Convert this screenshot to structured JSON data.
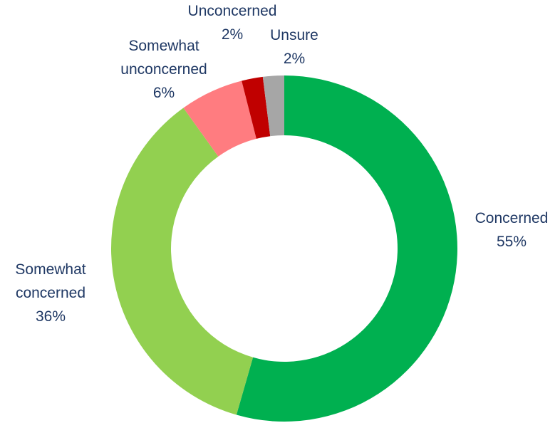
{
  "chart_data": {
    "type": "pie",
    "donut": true,
    "title": "",
    "legend": "none",
    "slices": [
      {
        "category": "Concerned",
        "lines": [
          "Concerned"
        ],
        "value": 55,
        "value_label": "55%",
        "color": "#00b050"
      },
      {
        "category": "Somewhat concerned",
        "lines": [
          "Somewhat",
          "concerned"
        ],
        "value": 36,
        "value_label": "36%",
        "color": "#92d050"
      },
      {
        "category": "Somewhat unconcerned",
        "lines": [
          "Somewhat",
          "unconcerned"
        ],
        "value": 6,
        "value_label": "6%",
        "color": "#ff7c80"
      },
      {
        "category": "Unconcerned",
        "lines": [
          "Unconcerned"
        ],
        "value": 2,
        "value_label": "2%",
        "color": "#c00000"
      },
      {
        "category": "Unsure",
        "lines": [
          "Unsure"
        ],
        "value": 2,
        "value_label": "2%",
        "color": "#a6a6a6"
      }
    ],
    "label_color": "#1f3864"
  }
}
